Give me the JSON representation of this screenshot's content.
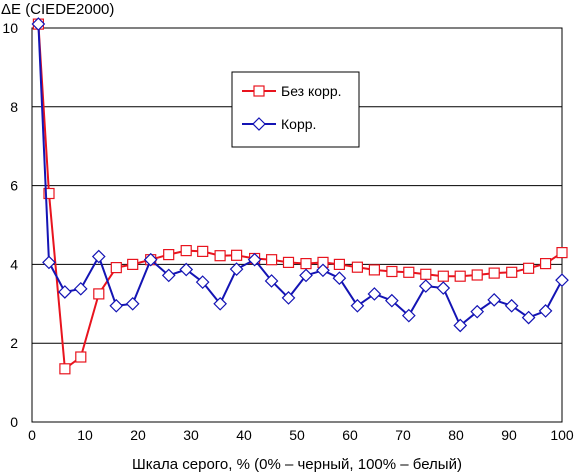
{
  "chart_data": {
    "type": "line",
    "ylabel": "ΔE (CIEDE2000)",
    "xlabel": "Шкала серого, % (0% – черный, 100% – белый)",
    "xlim": [
      0,
      100
    ],
    "ylim": [
      0,
      10
    ],
    "xticks": [
      "0",
      "10",
      "20",
      "30",
      "40",
      "50",
      "60",
      "70",
      "80",
      "90",
      "100"
    ],
    "yticks": [
      "0",
      "2",
      "4",
      "6",
      "8",
      "10"
    ],
    "grid": "horizontal",
    "legend_position": "upper-center",
    "series": [
      {
        "name": "Без корр.",
        "color": "#e8141e",
        "marker": "square",
        "x": [
          1.2,
          3.2,
          6.2,
          9.2,
          12.6,
          15.9,
          19.0,
          22.4,
          25.8,
          29.1,
          32.2,
          35.5,
          38.6,
          42.0,
          45.2,
          48.4,
          51.7,
          54.9,
          58.0,
          61.4,
          64.6,
          67.9,
          71.1,
          74.3,
          77.6,
          80.8,
          84.0,
          87.2,
          90.5,
          93.7,
          96.9,
          100.0
        ],
        "y": [
          10.1,
          5.8,
          1.35,
          1.65,
          3.25,
          3.92,
          4.0,
          4.12,
          4.25,
          4.35,
          4.33,
          4.22,
          4.23,
          4.15,
          4.12,
          4.05,
          4.02,
          4.05,
          4.0,
          3.93,
          3.86,
          3.82,
          3.8,
          3.75,
          3.7,
          3.7,
          3.73,
          3.78,
          3.8,
          3.9,
          4.02,
          4.3
        ]
      },
      {
        "name": "Корр.",
        "color": "#1414b4",
        "marker": "diamond",
        "x": [
          1.2,
          3.2,
          6.2,
          9.2,
          12.6,
          15.9,
          19.0,
          22.4,
          25.8,
          29.1,
          32.2,
          35.5,
          38.6,
          42.0,
          45.2,
          48.4,
          51.7,
          54.9,
          58.0,
          61.4,
          64.6,
          67.9,
          71.1,
          74.3,
          77.6,
          80.8,
          84.0,
          87.2,
          90.5,
          93.7,
          96.9,
          100.0
        ],
        "y": [
          10.1,
          4.05,
          3.3,
          3.38,
          4.2,
          2.95,
          3.0,
          4.12,
          3.72,
          3.87,
          3.55,
          3.0,
          3.88,
          4.12,
          3.58,
          3.15,
          3.72,
          3.85,
          3.65,
          2.95,
          3.25,
          3.08,
          2.7,
          3.45,
          3.4,
          2.45,
          2.8,
          3.1,
          2.95,
          2.65,
          2.82,
          3.6
        ]
      }
    ]
  }
}
